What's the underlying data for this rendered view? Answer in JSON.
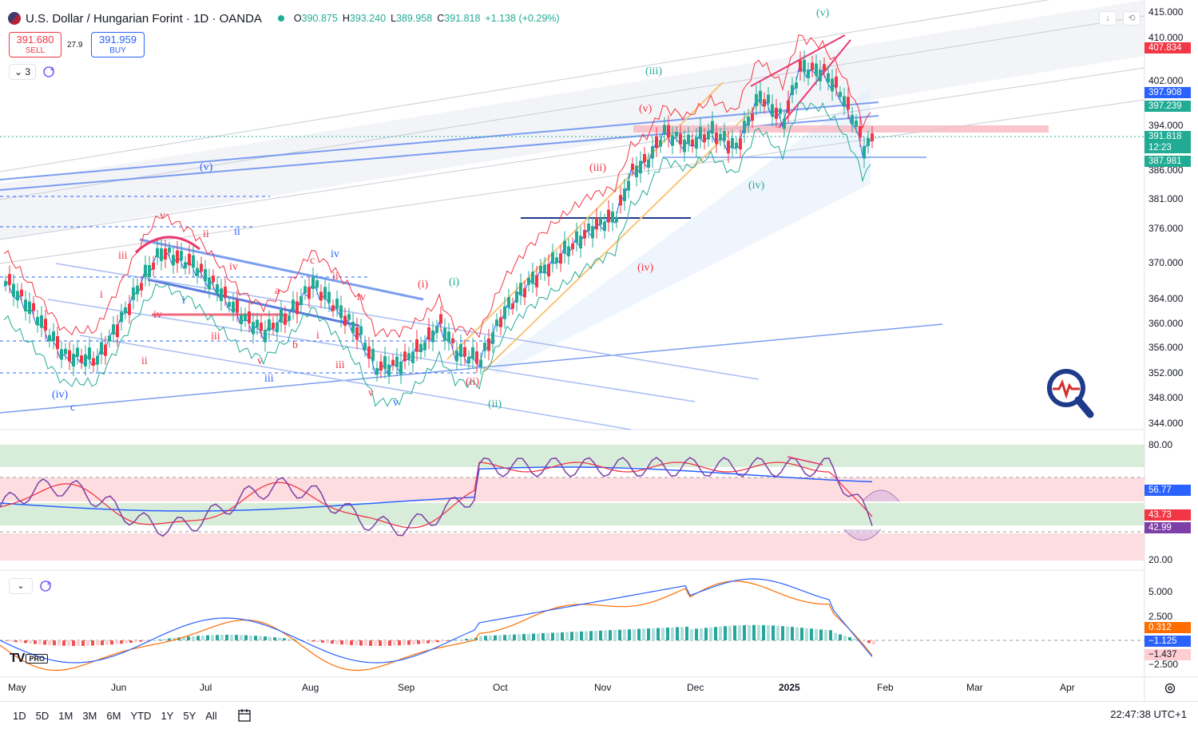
{
  "header": {
    "symbol": "U.S. Dollar / Hungarian Forint · 1D · OANDA",
    "open_label": "O",
    "open": "390.875",
    "high_label": "H",
    "high": "393.240",
    "low_label": "L",
    "low": "389.958",
    "close_label": "C",
    "close": "391.818",
    "change": "+1.138 (+0.29%)"
  },
  "trade": {
    "sell_price": "391.680",
    "sell_label": "SELL",
    "spread": "27.9",
    "buy_price": "391.959",
    "buy_label": "BUY"
  },
  "legend_toggle": "3",
  "top_buttons": [
    "↓",
    "⟲"
  ],
  "price_axis": [
    "415.000",
    "410.000",
    "402.000",
    "394.000",
    "386.000",
    "381.000",
    "376.000",
    "370.000",
    "364.000",
    "360.000",
    "356.000",
    "352.000",
    "348.000",
    "344.000"
  ],
  "price_tags": {
    "p1": "407.834",
    "p2": "397.908",
    "p3": "397.239",
    "p4": "391.818",
    "p4_timer": "12:23",
    "p5": "387.981"
  },
  "rsi_axis": [
    "80.00",
    "20.00"
  ],
  "rsi_tags": {
    "t1": "56.77",
    "t2": "43.73",
    "t3": "42.99"
  },
  "macd_axis": [
    "5.000",
    "2.500",
    "−2.500"
  ],
  "macd_tags": {
    "t1": "0.312",
    "t2": "−1.125",
    "t3": "−1.437"
  },
  "time_axis": [
    "May",
    "Jun",
    "Jul",
    "Aug",
    "Sep",
    "Oct",
    "Nov",
    "Dec",
    "2025",
    "Feb",
    "Mar",
    "Apr"
  ],
  "wave_labels": {
    "v_top": "(v)",
    "iii_green": "(iii)",
    "v_red": "(v)",
    "iii_red": "(iii)",
    "iv_green": "(iv)",
    "v_blue": "(v)",
    "iv_red": "(iv)",
    "i_red": "(i)",
    "i_green": "(i)",
    "ii_red": "(ii)",
    "ii_green": "(ii)",
    "iv_blue": "(iv)",
    "c_blue": "c",
    "small_v": "v",
    "small_ii": "ii",
    "small_ii_b": "ii",
    "small_iii": "iii",
    "small_iv": "iv",
    "small_i": "i",
    "small_c": "c",
    "small_a": "a",
    "small_b": "b"
  },
  "range_buttons": [
    "1D",
    "5D",
    "1M",
    "3M",
    "6M",
    "YTD",
    "1Y",
    "5Y",
    "All"
  ],
  "clock": "22:47:38 UTC+1",
  "logo": {
    "pro": "PRO"
  },
  "colors": {
    "up": "#22ab94",
    "down": "#f23645",
    "blue": "#2962ff"
  }
}
